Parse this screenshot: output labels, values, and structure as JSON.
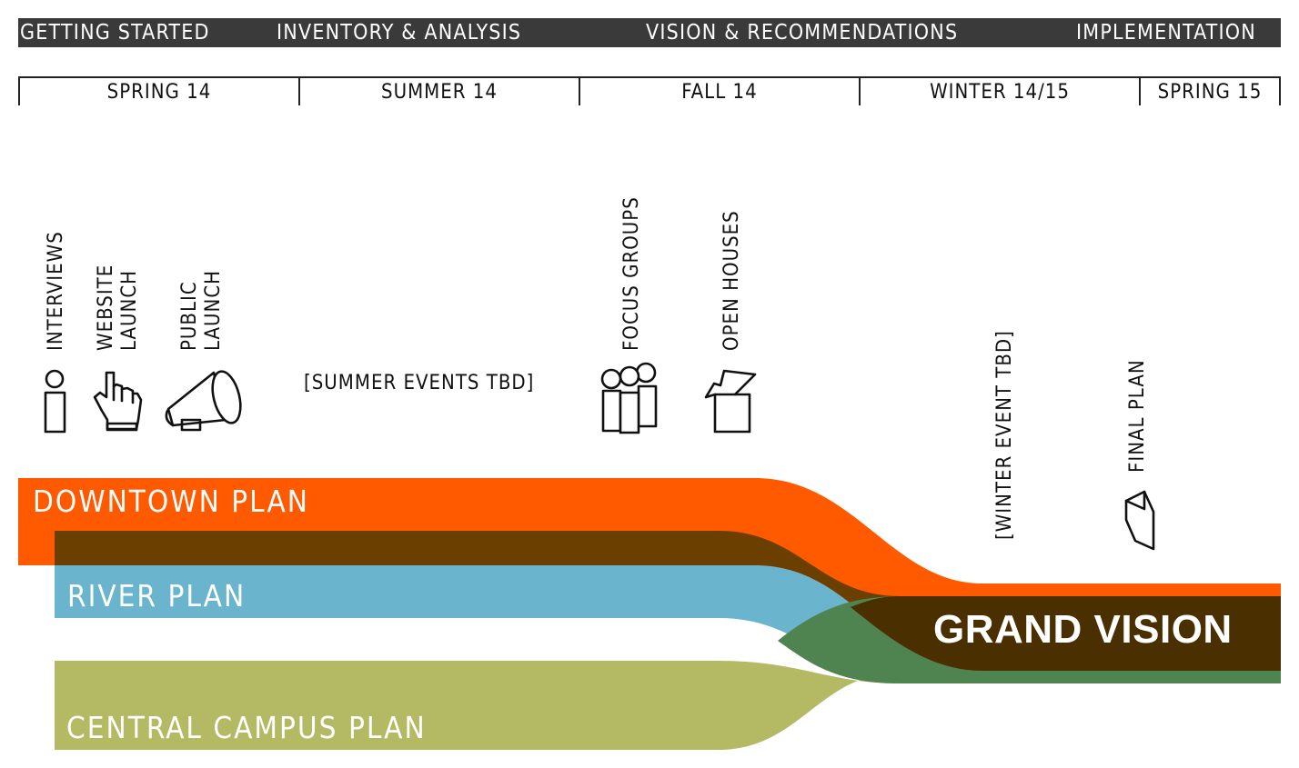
{
  "phases": [
    "GETTING STARTED",
    "INVENTORY & ANALYSIS",
    "VISION & RECOMMENDATIONS",
    "IMPLEMENTATION"
  ],
  "seasons": [
    "SPRING 14",
    "SUMMER 14",
    "FALL 14",
    "WINTER 14/15",
    "SPRING 15"
  ],
  "events": {
    "interviews": "INTERVIEWS",
    "website_launch_1": "WEBSITE",
    "website_launch_2": "LAUNCH",
    "public_launch_1": "PUBLIC",
    "public_launch_2": "LAUNCH",
    "summer_events": "[SUMMER EVENTS TBD]",
    "focus_groups": "FOCUS GROUPS",
    "open_houses": "OPEN HOUSES",
    "winter_event": "[WINTER EVENT TBD]",
    "final_plan": "FINAL PLAN"
  },
  "icons": [
    "person-icon",
    "pointer-hand-icon",
    "megaphone-icon",
    "group-icon",
    "open-box-icon",
    "document-icon"
  ],
  "plans": {
    "downtown": {
      "label": "DOWNTOWN PLAN",
      "color": "#ff5a00"
    },
    "river": {
      "label": "RIVER PLAN",
      "color": "#6ab4cd"
    },
    "campus": {
      "label": "CENTRAL CAMPUS PLAN",
      "color": "#b4b964"
    },
    "grand": {
      "label": "GRAND VISION",
      "color": "#4a2f00"
    }
  },
  "overlap_colors": {
    "downtown_river": "#6b3f00",
    "river_campus": "#4f8450"
  }
}
